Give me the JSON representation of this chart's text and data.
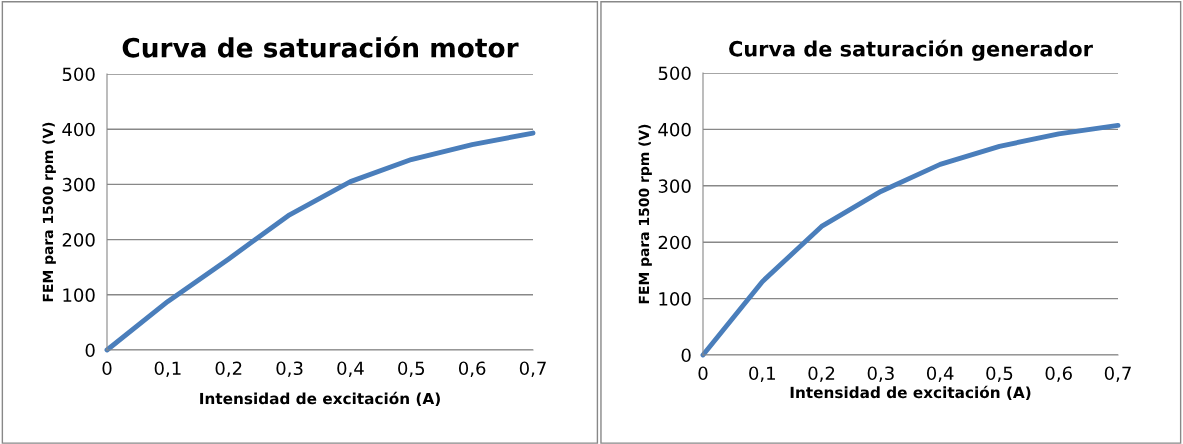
{
  "chart_data": [
    {
      "type": "line",
      "title": "Curva de saturación motor",
      "xlabel": "Intensidad de excitación (A)",
      "ylabel": "FEM para 1500 rpm (V)",
      "x": [
        0,
        0.1,
        0.2,
        0.3,
        0.4,
        0.5,
        0.6,
        0.7
      ],
      "series": [
        {
          "color": "#4a7ebb",
          "values": [
            0,
            88,
            165,
            245,
            305,
            345,
            372,
            393
          ]
        }
      ],
      "xlim": [
        0,
        0.7
      ],
      "xticks": [
        {
          "value": 0,
          "label": "0"
        },
        {
          "value": 0.1,
          "label": "0,1"
        },
        {
          "value": 0.2,
          "label": "0,2"
        },
        {
          "value": 0.3,
          "label": "0,3"
        },
        {
          "value": 0.4,
          "label": "0,4"
        },
        {
          "value": 0.5,
          "label": "0,5"
        },
        {
          "value": 0.6,
          "label": "0,6"
        },
        {
          "value": 0.7,
          "label": "0,7"
        }
      ],
      "ylim": [
        0,
        500
      ],
      "yticks": [
        0,
        100,
        200,
        300,
        400,
        500
      ],
      "grid": "y",
      "legend": false,
      "marker": "none",
      "line_style": "solid"
    },
    {
      "type": "line",
      "title": "Curva de saturación generador",
      "xlabel": "Intensidad de excitación (A)",
      "ylabel": "FEM para 1500 rpm (V)",
      "x": [
        0,
        0.1,
        0.2,
        0.3,
        0.4,
        0.5,
        0.6,
        0.7
      ],
      "series": [
        {
          "color": "#4a7ebb",
          "values": [
            0,
            130,
            228,
            290,
            338,
            370,
            392,
            407
          ]
        }
      ],
      "xlim": [
        0,
        0.7
      ],
      "xticks": [
        {
          "value": 0,
          "label": "0"
        },
        {
          "value": 0.1,
          "label": "0,1"
        },
        {
          "value": 0.2,
          "label": "0,2"
        },
        {
          "value": 0.3,
          "label": "0,3"
        },
        {
          "value": 0.4,
          "label": "0,4"
        },
        {
          "value": 0.5,
          "label": "0,5"
        },
        {
          "value": 0.6,
          "label": "0,6"
        },
        {
          "value": 0.7,
          "label": "0,7"
        }
      ],
      "ylim": [
        0,
        500
      ],
      "yticks": [
        0,
        100,
        200,
        300,
        400,
        500
      ],
      "grid": "y",
      "legend": false,
      "marker": "none",
      "line_style": "solid"
    }
  ]
}
